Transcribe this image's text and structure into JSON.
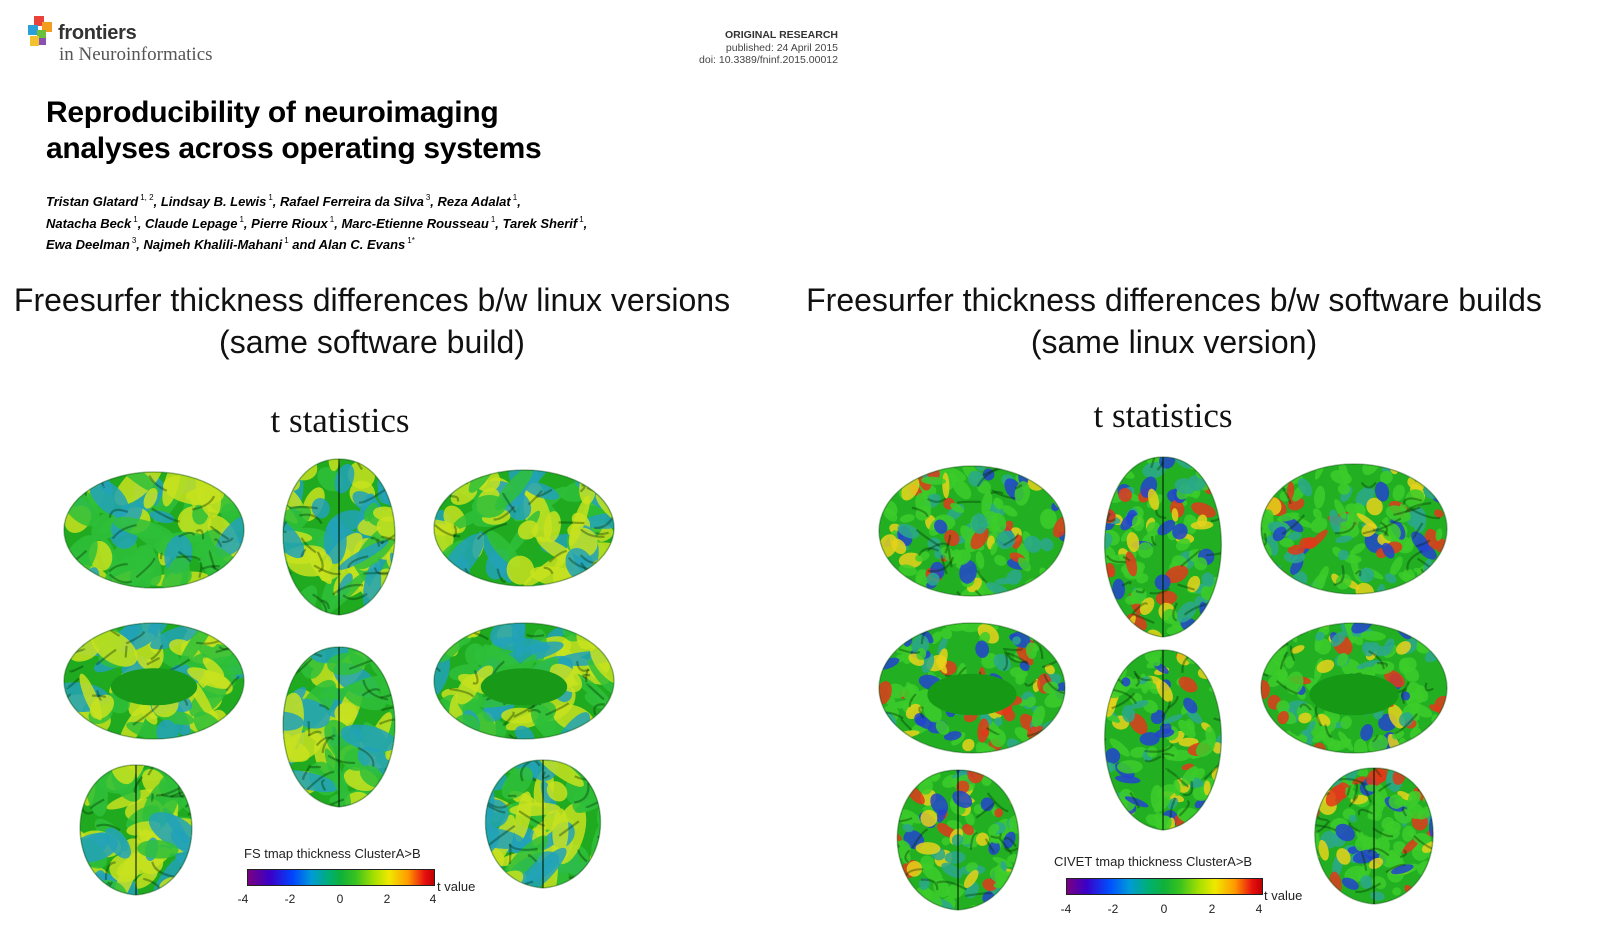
{
  "header": {
    "brand": "frontiers",
    "journal": "in Neuroinformatics",
    "article_type": "ORIGINAL RESEARCH",
    "published": "published: 24 April 2015",
    "doi": "doi: 10.3389/fninf.2015.00012"
  },
  "paper": {
    "title_line1": "Reproducibility of neuroimaging",
    "title_line2": "analyses across operating systems",
    "authors": [
      {
        "name": "Tristan Glatard",
        "aff": "1, 2",
        "sep": ","
      },
      {
        "name": "Lindsay B. Lewis",
        "aff": "1",
        "sep": ","
      },
      {
        "name": "Rafael Ferreira da Silva",
        "aff": "3",
        "sep": ","
      },
      {
        "name": "Reza Adalat",
        "aff": "1",
        "sep": ","
      },
      {
        "name": "Natacha Beck",
        "aff": "1",
        "sep": ","
      },
      {
        "name": "Claude Lepage",
        "aff": "1",
        "sep": ","
      },
      {
        "name": "Pierre Rioux",
        "aff": "1",
        "sep": ","
      },
      {
        "name": "Marc-Etienne Rousseau",
        "aff": "1",
        "sep": ","
      },
      {
        "name": "Tarek Sherif",
        "aff": "1",
        "sep": ","
      },
      {
        "name": "Ewa Deelman",
        "aff": "3",
        "sep": ","
      },
      {
        "name": "Najmeh Khalili-Mahani",
        "aff": "1",
        "sep": " and"
      },
      {
        "name": "Alan C. Evans",
        "aff": "1*",
        "sep": ""
      }
    ]
  },
  "left_panel": {
    "heading_line1": "Freesurfer thickness differences b/w linux versions",
    "heading_line2": "(same software build)",
    "plot_title": "t statistics",
    "colorbar_title": "FS tmap thickness ClusterA>B",
    "colorbar_unit": "t value",
    "colorbar_ticks": [
      "-4",
      "-2",
      "0",
      "2",
      "4"
    ],
    "palette": "green-yellow-cyan"
  },
  "right_panel": {
    "heading_line1": "Freesurfer thickness differences b/w software builds",
    "heading_line2": "(same linux version)",
    "plot_title": "t statistics",
    "colorbar_title": "CIVET tmap thickness ClusterA>B",
    "colorbar_unit": "t value",
    "colorbar_ticks": [
      "-4",
      "-2",
      "0",
      "2",
      "4"
    ],
    "palette": "green-speckled"
  },
  "colors": {
    "fs_green": "#1faa1f",
    "fs_yellow": "#c8e21e",
    "fs_cyan": "#22a2b8",
    "civet_green": "#22b022",
    "civet_red": "#e03a1a",
    "civet_blue": "#2244cc",
    "logo": [
      "#e8423a",
      "#f39c1f",
      "#2a9fd8",
      "#6cbf3b",
      "#8a4fb0"
    ]
  }
}
